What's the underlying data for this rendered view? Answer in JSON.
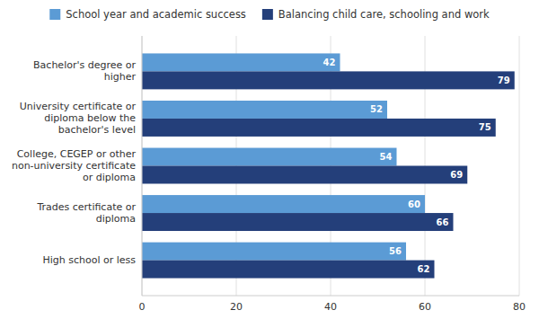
{
  "chart_data": {
    "type": "bar",
    "orientation": "horizontal",
    "categories": [
      "High school or less",
      "Trades certificate or\ndiploma",
      "College, CEGEP or other\nnon-university certificate\nor diploma",
      "University certificate or\ndiploma below the\nbachelor's level",
      "Bachelor's degree or\nhigher"
    ],
    "series": [
      {
        "name": "School year and academic success",
        "color": "#5b9bd5",
        "values": [
          56,
          60,
          54,
          52,
          42
        ]
      },
      {
        "name": "Balancing child care, schooling and work",
        "color": "#243f7a",
        "values": [
          62,
          66,
          69,
          75,
          79
        ]
      }
    ],
    "xlim": [
      0,
      80
    ],
    "xticks": [
      0,
      20,
      40,
      60,
      80
    ],
    "grid": true,
    "legend": "top",
    "data_labels": true
  }
}
